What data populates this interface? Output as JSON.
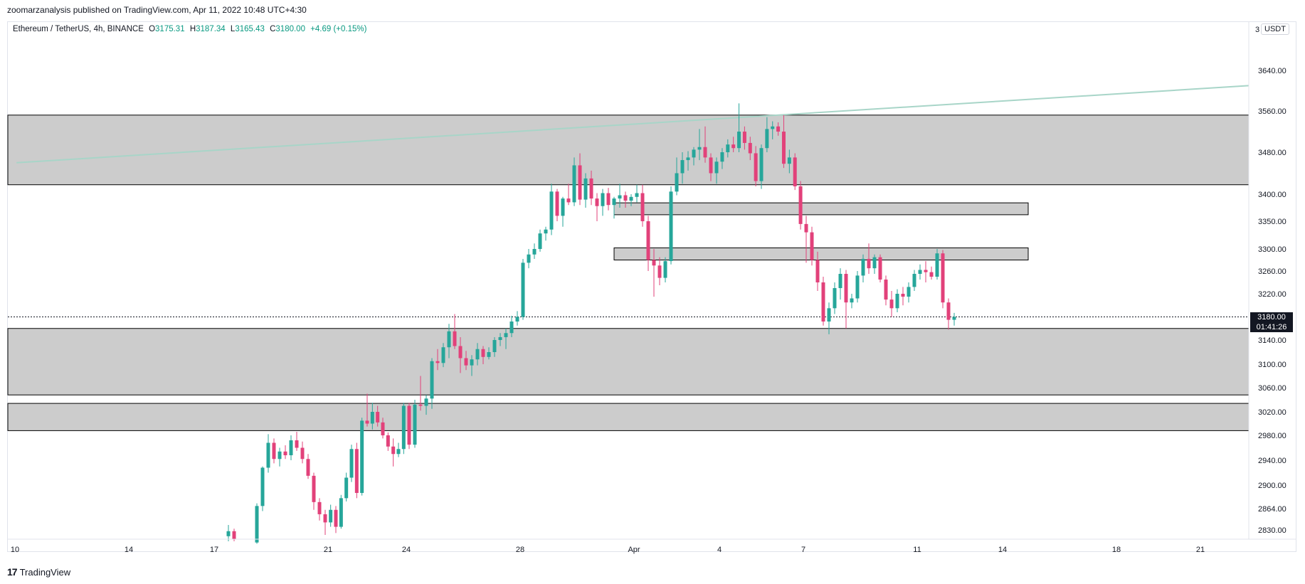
{
  "publisher_line": "zoomarzanalysis published on TradingView.com, Apr 11, 2022 10:48 UTC+4:30",
  "legend": {
    "symbol": "Ethereum / TetherUS, 4h, BINANCE",
    "open_label": "O",
    "open": "3175.31",
    "high_label": "H",
    "high": "3187.34",
    "low_label": "L",
    "low": "3165.43",
    "close_label": "C",
    "close": "3180.00",
    "change": "+4.69 (+0.15%)"
  },
  "unit_prefix": "3",
  "unit": "USDT",
  "last_price": "3180.00",
  "countdown": "01:41:26",
  "footer_brand": "TradingView",
  "colors": {
    "up": "#26a69a",
    "down": "#e2417a",
    "zone_fill": "#cccccc",
    "trendline": "#a8d5c8",
    "price_tag": "#131722"
  },
  "chart_data": {
    "type": "candlestick",
    "title": "Ethereum / TetherUS, 4h, BINANCE",
    "xlabel": "",
    "ylabel": "USDT",
    "ylim": [
      2810,
      3690
    ],
    "y_ticks": [
      {
        "value": 3640,
        "label": "3640.00"
      },
      {
        "value": 3560,
        "label": "3560.00"
      },
      {
        "value": 3480,
        "label": "3480.00"
      },
      {
        "value": 3400,
        "label": "3400.00"
      },
      {
        "value": 3350,
        "label": "3350.00"
      },
      {
        "value": 3300,
        "label": "3300.00"
      },
      {
        "value": 3260,
        "label": "3260.00"
      },
      {
        "value": 3220,
        "label": "3220.00"
      },
      {
        "value": 3140,
        "label": "3140.00"
      },
      {
        "value": 3100,
        "label": "3100.00"
      },
      {
        "value": 3060,
        "label": "3060.00"
      },
      {
        "value": 3020,
        "label": "3020.00"
      },
      {
        "value": 2980,
        "label": "2980.00"
      },
      {
        "value": 2940,
        "label": "2940.00"
      },
      {
        "value": 2900,
        "label": "2900.00"
      },
      {
        "value": 2864,
        "label": "2864.00"
      },
      {
        "value": 2830,
        "label": "2830.00"
      }
    ],
    "x_ticks": [
      {
        "day": 10,
        "label": "10"
      },
      {
        "day": 14,
        "label": "14"
      },
      {
        "day": 17,
        "label": "17"
      },
      {
        "day": 21,
        "label": "21"
      },
      {
        "day": 24,
        "label": "24"
      },
      {
        "day": 28,
        "label": "28"
      },
      {
        "day": 32,
        "label": "Apr"
      },
      {
        "day": 35,
        "label": "4"
      },
      {
        "day": 38,
        "label": "7"
      },
      {
        "day": 42,
        "label": "11"
      },
      {
        "day": 45,
        "label": "14"
      },
      {
        "day": 49,
        "label": "18"
      },
      {
        "day": 52,
        "label": "21"
      }
    ],
    "zones": [
      {
        "from": 3418,
        "to": 3552,
        "extend": "full"
      },
      {
        "from": 3362,
        "to": 3384,
        "extend": "partial"
      },
      {
        "from": 3280,
        "to": 3302,
        "extend": "partial"
      },
      {
        "from": 3048,
        "to": 3160,
        "extend": "full"
      },
      {
        "from": 2988,
        "to": 3034,
        "extend": "full"
      }
    ],
    "trendline": {
      "start": {
        "day": 9.7,
        "price": 3460
      },
      "end": {
        "day": 53.7,
        "price": 3610
      }
    },
    "current_price": 3180.0,
    "candles": [
      {
        "d": 17.5,
        "o": 2820,
        "h": 2838,
        "l": 2812,
        "c": 2828
      },
      {
        "d": 17.7,
        "o": 2828,
        "h": 2832,
        "l": 2812,
        "c": 2815
      },
      {
        "d": 18.5,
        "o": 2810,
        "h": 2872,
        "l": 2808,
        "c": 2868
      },
      {
        "d": 18.7,
        "o": 2868,
        "h": 2930,
        "l": 2860,
        "c": 2928
      },
      {
        "d": 18.9,
        "o": 2928,
        "h": 2982,
        "l": 2920,
        "c": 2968
      },
      {
        "d": 19.1,
        "o": 2968,
        "h": 2975,
        "l": 2935,
        "c": 2942
      },
      {
        "d": 19.3,
        "o": 2942,
        "h": 2960,
        "l": 2930,
        "c": 2954
      },
      {
        "d": 19.5,
        "o": 2954,
        "h": 2964,
        "l": 2942,
        "c": 2948
      },
      {
        "d": 19.7,
        "o": 2948,
        "h": 2980,
        "l": 2940,
        "c": 2972
      },
      {
        "d": 19.9,
        "o": 2972,
        "h": 2986,
        "l": 2955,
        "c": 2960
      },
      {
        "d": 20.1,
        "o": 2960,
        "h": 2970,
        "l": 2935,
        "c": 2942
      },
      {
        "d": 20.3,
        "o": 2942,
        "h": 2950,
        "l": 2910,
        "c": 2915
      },
      {
        "d": 20.5,
        "o": 2915,
        "h": 2920,
        "l": 2862,
        "c": 2874
      },
      {
        "d": 20.7,
        "o": 2874,
        "h": 2880,
        "l": 2845,
        "c": 2855
      },
      {
        "d": 20.9,
        "o": 2855,
        "h": 2862,
        "l": 2822,
        "c": 2842
      },
      {
        "d": 21.1,
        "o": 2842,
        "h": 2870,
        "l": 2835,
        "c": 2862
      },
      {
        "d": 21.3,
        "o": 2862,
        "h": 2868,
        "l": 2825,
        "c": 2835
      },
      {
        "d": 21.5,
        "o": 2835,
        "h": 2885,
        "l": 2832,
        "c": 2880
      },
      {
        "d": 21.7,
        "o": 2880,
        "h": 2920,
        "l": 2875,
        "c": 2912
      },
      {
        "d": 21.9,
        "o": 2912,
        "h": 2965,
        "l": 2905,
        "c": 2958
      },
      {
        "d": 22.1,
        "o": 2958,
        "h": 2968,
        "l": 2880,
        "c": 2888
      },
      {
        "d": 22.3,
        "o": 2888,
        "h": 3010,
        "l": 2884,
        "c": 3005
      },
      {
        "d": 22.5,
        "o": 3005,
        "h": 3050,
        "l": 2995,
        "c": 3000
      },
      {
        "d": 22.7,
        "o": 3000,
        "h": 3035,
        "l": 2990,
        "c": 3020
      },
      {
        "d": 22.9,
        "o": 3020,
        "h": 3030,
        "l": 2995,
        "c": 3002
      },
      {
        "d": 23.1,
        "o": 3002,
        "h": 3010,
        "l": 2975,
        "c": 2980
      },
      {
        "d": 23.3,
        "o": 2980,
        "h": 2985,
        "l": 2955,
        "c": 2962
      },
      {
        "d": 23.5,
        "o": 2962,
        "h": 2975,
        "l": 2930,
        "c": 2950
      },
      {
        "d": 23.7,
        "o": 2950,
        "h": 2968,
        "l": 2945,
        "c": 2958
      },
      {
        "d": 23.9,
        "o": 2958,
        "h": 3035,
        "l": 2950,
        "c": 3030
      },
      {
        "d": 24.1,
        "o": 3030,
        "h": 3035,
        "l": 2958,
        "c": 2965
      },
      {
        "d": 24.3,
        "o": 2965,
        "h": 3040,
        "l": 2960,
        "c": 3032
      },
      {
        "d": 24.5,
        "o": 3032,
        "h": 3080,
        "l": 3022,
        "c": 3030
      },
      {
        "d": 24.7,
        "o": 3030,
        "h": 3048,
        "l": 3015,
        "c": 3042
      },
      {
        "d": 24.9,
        "o": 3042,
        "h": 3110,
        "l": 3025,
        "c": 3105
      },
      {
        "d": 25.1,
        "o": 3105,
        "h": 3125,
        "l": 3090,
        "c": 3102
      },
      {
        "d": 25.3,
        "o": 3102,
        "h": 3135,
        "l": 3095,
        "c": 3128
      },
      {
        "d": 25.5,
        "o": 3128,
        "h": 3168,
        "l": 3110,
        "c": 3155
      },
      {
        "d": 25.7,
        "o": 3155,
        "h": 3185,
        "l": 3125,
        "c": 3130
      },
      {
        "d": 25.9,
        "o": 3130,
        "h": 3145,
        "l": 3085,
        "c": 3110
      },
      {
        "d": 26.1,
        "o": 3110,
        "h": 3122,
        "l": 3090,
        "c": 3098
      },
      {
        "d": 26.3,
        "o": 3098,
        "h": 3115,
        "l": 3080,
        "c": 3108
      },
      {
        "d": 26.5,
        "o": 3108,
        "h": 3135,
        "l": 3098,
        "c": 3125
      },
      {
        "d": 26.7,
        "o": 3125,
        "h": 3130,
        "l": 3100,
        "c": 3112
      },
      {
        "d": 26.9,
        "o": 3112,
        "h": 3128,
        "l": 3108,
        "c": 3120
      },
      {
        "d": 27.1,
        "o": 3120,
        "h": 3145,
        "l": 3112,
        "c": 3140
      },
      {
        "d": 27.3,
        "o": 3140,
        "h": 3152,
        "l": 3130,
        "c": 3145
      },
      {
        "d": 27.5,
        "o": 3145,
        "h": 3160,
        "l": 3125,
        "c": 3152
      },
      {
        "d": 27.7,
        "o": 3152,
        "h": 3182,
        "l": 3145,
        "c": 3172
      },
      {
        "d": 27.9,
        "o": 3172,
        "h": 3190,
        "l": 3165,
        "c": 3180
      },
      {
        "d": 28.1,
        "o": 3180,
        "h": 3282,
        "l": 3175,
        "c": 3275
      },
      {
        "d": 28.3,
        "o": 3275,
        "h": 3300,
        "l": 3265,
        "c": 3290
      },
      {
        "d": 28.5,
        "o": 3290,
        "h": 3310,
        "l": 3282,
        "c": 3300
      },
      {
        "d": 28.7,
        "o": 3300,
        "h": 3335,
        "l": 3295,
        "c": 3328
      },
      {
        "d": 28.9,
        "o": 3328,
        "h": 3340,
        "l": 3315,
        "c": 3335
      },
      {
        "d": 29.1,
        "o": 3335,
        "h": 3420,
        "l": 3325,
        "c": 3405
      },
      {
        "d": 29.3,
        "o": 3405,
        "h": 3410,
        "l": 3350,
        "c": 3360
      },
      {
        "d": 29.5,
        "o": 3360,
        "h": 3395,
        "l": 3340,
        "c": 3392
      },
      {
        "d": 29.7,
        "o": 3392,
        "h": 3420,
        "l": 3380,
        "c": 3385
      },
      {
        "d": 29.9,
        "o": 3385,
        "h": 3470,
        "l": 3378,
        "c": 3455
      },
      {
        "d": 30.1,
        "o": 3455,
        "h": 3478,
        "l": 3380,
        "c": 3390
      },
      {
        "d": 30.3,
        "o": 3390,
        "h": 3440,
        "l": 3375,
        "c": 3430
      },
      {
        "d": 30.5,
        "o": 3430,
        "h": 3445,
        "l": 3380,
        "c": 3392
      },
      {
        "d": 30.7,
        "o": 3392,
        "h": 3402,
        "l": 3350,
        "c": 3378
      },
      {
        "d": 30.9,
        "o": 3378,
        "h": 3410,
        "l": 3360,
        "c": 3402
      },
      {
        "d": 31.1,
        "o": 3402,
        "h": 3412,
        "l": 3370,
        "c": 3380
      },
      {
        "d": 31.3,
        "o": 3380,
        "h": 3395,
        "l": 3355,
        "c": 3392
      },
      {
        "d": 31.5,
        "o": 3392,
        "h": 3420,
        "l": 3375,
        "c": 3398
      },
      {
        "d": 31.7,
        "o": 3398,
        "h": 3405,
        "l": 3375,
        "c": 3388
      },
      {
        "d": 31.9,
        "o": 3388,
        "h": 3400,
        "l": 3378,
        "c": 3395
      },
      {
        "d": 32.1,
        "o": 3395,
        "h": 3418,
        "l": 3385,
        "c": 3402
      },
      {
        "d": 32.3,
        "o": 3402,
        "h": 3418,
        "l": 3340,
        "c": 3350
      },
      {
        "d": 32.5,
        "o": 3350,
        "h": 3360,
        "l": 3260,
        "c": 3280
      },
      {
        "d": 32.7,
        "o": 3280,
        "h": 3300,
        "l": 3215,
        "c": 3270
      },
      {
        "d": 32.9,
        "o": 3270,
        "h": 3285,
        "l": 3235,
        "c": 3248
      },
      {
        "d": 33.1,
        "o": 3248,
        "h": 3285,
        "l": 3240,
        "c": 3278
      },
      {
        "d": 33.3,
        "o": 3278,
        "h": 3415,
        "l": 3272,
        "c": 3405
      },
      {
        "d": 33.5,
        "o": 3405,
        "h": 3470,
        "l": 3398,
        "c": 3440
      },
      {
        "d": 33.7,
        "o": 3440,
        "h": 3480,
        "l": 3420,
        "c": 3465
      },
      {
        "d": 33.9,
        "o": 3465,
        "h": 3482,
        "l": 3445,
        "c": 3470
      },
      {
        "d": 34.1,
        "o": 3470,
        "h": 3490,
        "l": 3455,
        "c": 3485
      },
      {
        "d": 34.3,
        "o": 3485,
        "h": 3525,
        "l": 3465,
        "c": 3490
      },
      {
        "d": 34.5,
        "o": 3490,
        "h": 3530,
        "l": 3460,
        "c": 3470
      },
      {
        "d": 34.7,
        "o": 3470,
        "h": 3478,
        "l": 3425,
        "c": 3440
      },
      {
        "d": 34.9,
        "o": 3440,
        "h": 3470,
        "l": 3420,
        "c": 3462
      },
      {
        "d": 35.1,
        "o": 3462,
        "h": 3488,
        "l": 3448,
        "c": 3480
      },
      {
        "d": 35.3,
        "o": 3480,
        "h": 3505,
        "l": 3470,
        "c": 3495
      },
      {
        "d": 35.5,
        "o": 3495,
        "h": 3510,
        "l": 3480,
        "c": 3488
      },
      {
        "d": 35.7,
        "o": 3488,
        "h": 3575,
        "l": 3480,
        "c": 3520
      },
      {
        "d": 35.9,
        "o": 3520,
        "h": 3530,
        "l": 3485,
        "c": 3498
      },
      {
        "d": 36.1,
        "o": 3498,
        "h": 3510,
        "l": 3465,
        "c": 3478
      },
      {
        "d": 36.3,
        "o": 3478,
        "h": 3492,
        "l": 3415,
        "c": 3425
      },
      {
        "d": 36.5,
        "o": 3425,
        "h": 3495,
        "l": 3410,
        "c": 3488
      },
      {
        "d": 36.7,
        "o": 3488,
        "h": 3548,
        "l": 3480,
        "c": 3525
      },
      {
        "d": 36.9,
        "o": 3525,
        "h": 3540,
        "l": 3505,
        "c": 3530
      },
      {
        "d": 37.1,
        "o": 3530,
        "h": 3538,
        "l": 3512,
        "c": 3520
      },
      {
        "d": 37.3,
        "o": 3520,
        "h": 3552,
        "l": 3450,
        "c": 3458
      },
      {
        "d": 37.5,
        "o": 3458,
        "h": 3485,
        "l": 3440,
        "c": 3470
      },
      {
        "d": 37.7,
        "o": 3470,
        "h": 3478,
        "l": 3408,
        "c": 3415
      },
      {
        "d": 37.9,
        "o": 3415,
        "h": 3425,
        "l": 3335,
        "c": 3345
      },
      {
        "d": 38.1,
        "o": 3345,
        "h": 3360,
        "l": 3275,
        "c": 3330
      },
      {
        "d": 38.3,
        "o": 3330,
        "h": 3340,
        "l": 3270,
        "c": 3280
      },
      {
        "d": 38.5,
        "o": 3280,
        "h": 3295,
        "l": 3225,
        "c": 3240
      },
      {
        "d": 38.7,
        "o": 3240,
        "h": 3250,
        "l": 3165,
        "c": 3172
      },
      {
        "d": 38.9,
        "o": 3172,
        "h": 3205,
        "l": 3150,
        "c": 3195
      },
      {
        "d": 39.1,
        "o": 3195,
        "h": 3240,
        "l": 3185,
        "c": 3230
      },
      {
        "d": 39.3,
        "o": 3230,
        "h": 3265,
        "l": 3210,
        "c": 3255
      },
      {
        "d": 39.5,
        "o": 3255,
        "h": 3262,
        "l": 3160,
        "c": 3205
      },
      {
        "d": 39.7,
        "o": 3205,
        "h": 3220,
        "l": 3195,
        "c": 3212
      },
      {
        "d": 39.9,
        "o": 3212,
        "h": 3260,
        "l": 3205,
        "c": 3252
      },
      {
        "d": 40.1,
        "o": 3252,
        "h": 3290,
        "l": 3240,
        "c": 3282
      },
      {
        "d": 40.3,
        "o": 3282,
        "h": 3310,
        "l": 3255,
        "c": 3265
      },
      {
        "d": 40.5,
        "o": 3265,
        "h": 3290,
        "l": 3255,
        "c": 3285
      },
      {
        "d": 40.7,
        "o": 3285,
        "h": 3290,
        "l": 3240,
        "c": 3245
      },
      {
        "d": 40.9,
        "o": 3245,
        "h": 3252,
        "l": 3200,
        "c": 3210
      },
      {
        "d": 41.1,
        "o": 3210,
        "h": 3225,
        "l": 3180,
        "c": 3195
      },
      {
        "d": 41.3,
        "o": 3195,
        "h": 3228,
        "l": 3188,
        "c": 3220
      },
      {
        "d": 41.5,
        "o": 3220,
        "h": 3232,
        "l": 3200,
        "c": 3215
      },
      {
        "d": 41.7,
        "o": 3215,
        "h": 3240,
        "l": 3205,
        "c": 3232
      },
      {
        "d": 41.9,
        "o": 3232,
        "h": 3262,
        "l": 3225,
        "c": 3255
      },
      {
        "d": 42.1,
        "o": 3255,
        "h": 3272,
        "l": 3245,
        "c": 3262
      },
      {
        "d": 42.3,
        "o": 3262,
        "h": 3278,
        "l": 3240,
        "c": 3258
      },
      {
        "d": 42.5,
        "o": 3258,
        "h": 3268,
        "l": 3245,
        "c": 3250
      },
      {
        "d": 42.7,
        "o": 3250,
        "h": 3300,
        "l": 3245,
        "c": 3292
      },
      {
        "d": 42.9,
        "o": 3292,
        "h": 3298,
        "l": 3195,
        "c": 3205
      },
      {
        "d": 43.1,
        "o": 3205,
        "h": 3212,
        "l": 3158,
        "c": 3175
      },
      {
        "d": 43.3,
        "o": 3175,
        "h": 3187,
        "l": 3165,
        "c": 3180
      }
    ]
  }
}
